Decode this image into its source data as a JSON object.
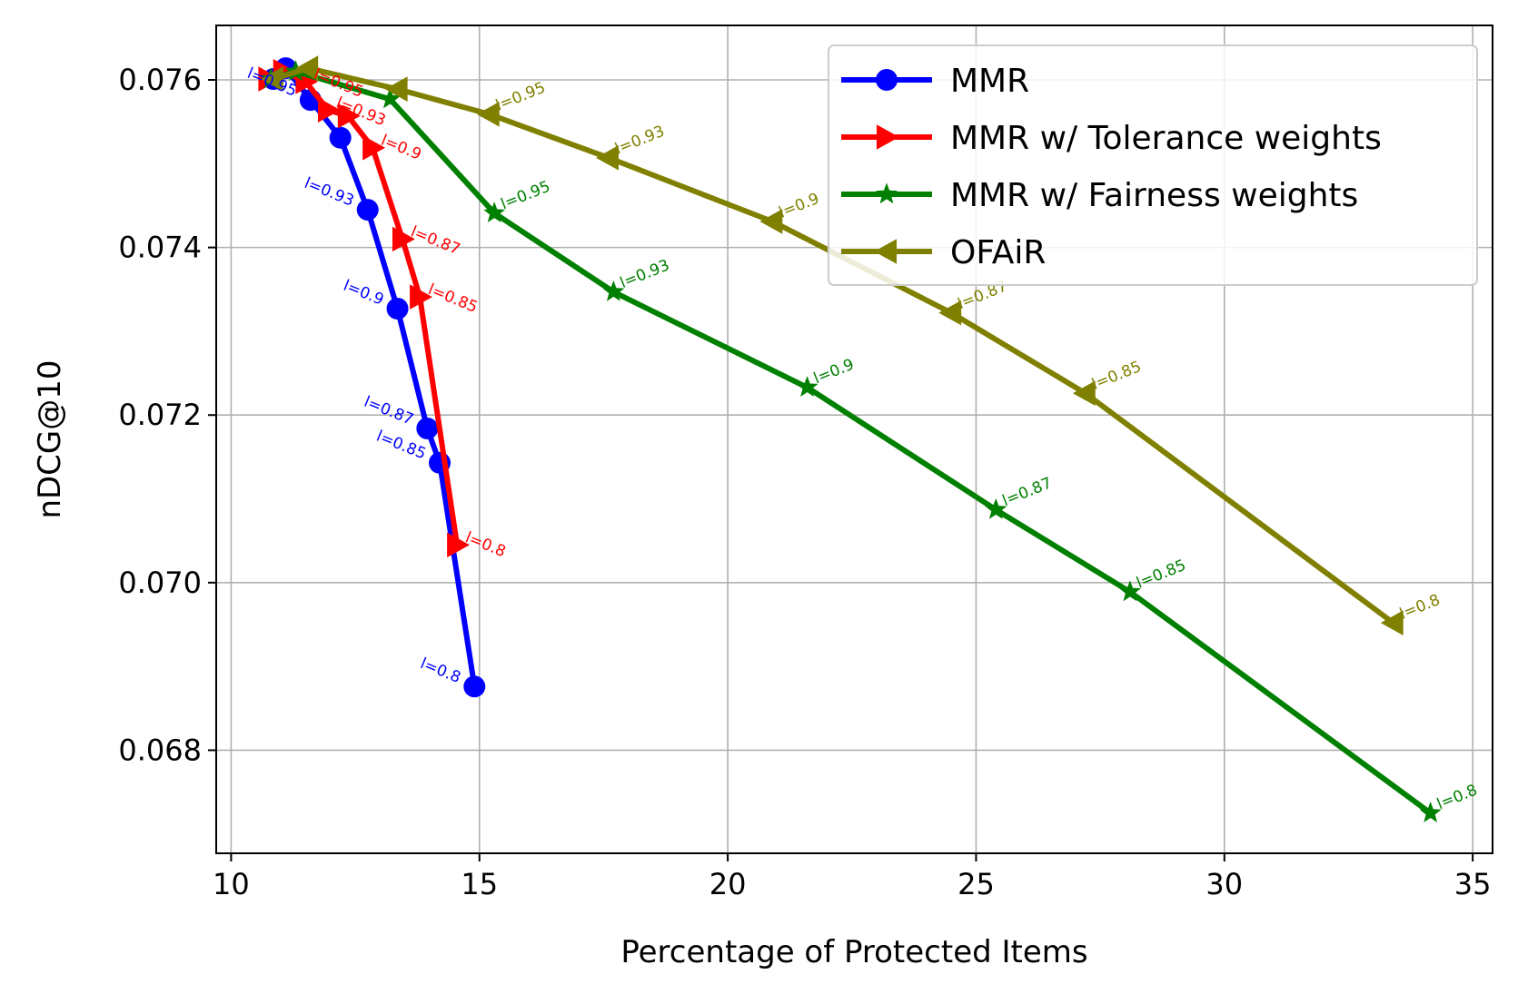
{
  "chart_data": {
    "type": "line",
    "xlabel": "Percentage of Protected Items",
    "ylabel": "nDCG@10",
    "xlim": [
      9.7,
      35.4
    ],
    "ylim": [
      0.06677,
      0.07665
    ],
    "xticks": [
      10,
      15,
      20,
      25,
      30,
      35
    ],
    "xtick_labels": [
      "10",
      "15",
      "20",
      "25",
      "30",
      "35"
    ],
    "yticks": [
      0.068,
      0.07,
      0.072,
      0.074,
      0.076
    ],
    "ytick_labels": [
      "0.068",
      "0.070",
      "0.072",
      "0.074",
      "0.076"
    ],
    "grid": true,
    "legend_position": "upper right",
    "series": [
      {
        "name": "MMR",
        "color": "#0000ff",
        "marker": "circle",
        "x": [
          10.85,
          11.1,
          11.6,
          12.2,
          12.75,
          13.35,
          13.95,
          14.2,
          14.9
        ],
        "y": [
          0.07601,
          0.07614,
          0.07576,
          0.07531,
          0.07445,
          0.07327,
          0.07184,
          0.07143,
          0.06876
        ],
        "point_labels": [
          "",
          "",
          "l=0.95",
          "",
          "l=0.93",
          "l=0.9",
          "l=0.87",
          "l=0.85",
          "l=0.8"
        ]
      },
      {
        "name": "MMR w/ Tolerance weights",
        "color": "#ff0000",
        "marker": "triangle-right",
        "x": [
          10.75,
          11.05,
          11.5,
          11.95,
          12.35,
          12.85,
          13.45,
          13.8,
          14.55
        ],
        "y": [
          0.07601,
          0.0761,
          0.07598,
          0.07564,
          0.07557,
          0.07519,
          0.0741,
          0.07341,
          0.07045
        ],
        "point_labels": [
          "",
          "",
          "l=0.95",
          "l=0.93",
          "",
          "l=0.9",
          "l=0.87",
          "l=0.85",
          "l=0.8"
        ]
      },
      {
        "name": "MMR w/ Fairness weights",
        "color": "#008000",
        "marker": "star",
        "x": [
          10.8,
          11.3,
          13.2,
          15.3,
          17.7,
          21.6,
          25.4,
          28.1,
          34.15
        ],
        "y": [
          0.07601,
          0.0761,
          0.07577,
          0.07441,
          0.07347,
          0.07233,
          0.07087,
          0.06989,
          0.06725
        ],
        "point_labels": [
          "",
          "",
          "",
          "l=0.95",
          "l=0.93",
          "l=0.9",
          "l=0.87",
          "l=0.85",
          "l=0.8"
        ]
      },
      {
        "name": "OFAiR",
        "color": "#808000",
        "marker": "triangle-left",
        "x": [
          10.85,
          11.55,
          13.35,
          15.2,
          17.6,
          20.9,
          24.5,
          27.2,
          33.4
        ],
        "y": [
          0.07601,
          0.07614,
          0.07589,
          0.07559,
          0.07507,
          0.07431,
          0.07322,
          0.07226,
          0.06952
        ],
        "point_labels": [
          "",
          "",
          "",
          "l=0.95",
          "l=0.93",
          "l=0.9",
          "l=0.87",
          "l=0.85",
          "l=0.8"
        ]
      }
    ]
  }
}
